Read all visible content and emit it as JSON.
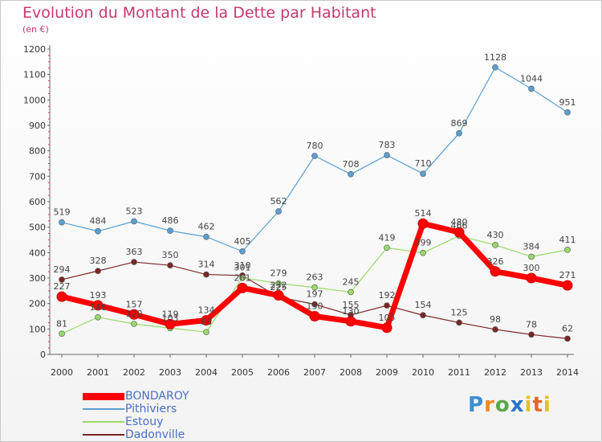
{
  "title": "Evolution du Montant de la Dette par Habitant",
  "subtitle": "(en €)",
  "logo_text": "Proxiti",
  "chart_data": {
    "type": "line",
    "title": "Evolution du Montant de la Dette par Habitant",
    "subtitle": "(en €)",
    "x": [
      "2000",
      "2001",
      "2002",
      "2003",
      "2004",
      "2005",
      "2006",
      "2007",
      "2008",
      "2009",
      "2010",
      "2011",
      "2012",
      "2013",
      "2014"
    ],
    "ylim": [
      0,
      1200
    ],
    "yticks": [
      0,
      100,
      200,
      300,
      400,
      500,
      600,
      700,
      800,
      900,
      1000,
      1100,
      1200
    ],
    "grid": false,
    "legend_position": "bottom-left",
    "series": [
      {
        "name": "BONDAROY",
        "color": "#ff0000",
        "values": [
          227,
          193,
          157,
          119,
          134,
          261,
          232,
          150,
          130,
          105,
          514,
          480,
          326,
          300,
          271
        ],
        "labels": [
          "227",
          "193",
          "157",
          "119",
          "134",
          "261",
          "232",
          "150",
          "130",
          "105",
          "514",
          "480",
          "326",
          "300",
          "271"
        ]
      },
      {
        "name": "Pithiviers",
        "color": "#5a9fd4",
        "values": [
          519,
          484,
          523,
          486,
          462,
          405,
          562,
          780,
          708,
          783,
          710,
          869,
          1128,
          1044,
          951
        ],
        "labels": [
          "519",
          "484",
          "523",
          "486",
          "462",
          "405",
          "562",
          "780",
          "708",
          "783",
          "710",
          "869",
          "1128",
          "1044",
          "951"
        ]
      },
      {
        "name": "Estouy",
        "color": "#99d96a",
        "values": [
          81,
          146,
          120,
          103,
          88,
          301,
          279,
          263,
          245,
          419,
          399,
          466,
          430,
          384,
          411
        ],
        "labels": [
          "81",
          "146",
          "120",
          "103",
          "88",
          "301",
          "279",
          "263",
          "245",
          "419",
          "399",
          "466",
          "430",
          "384",
          "411"
        ]
      },
      {
        "name": "Dadonville",
        "color": "#7a2626",
        "values": [
          294,
          328,
          363,
          350,
          314,
          310,
          225,
          197,
          155,
          192,
          154,
          125,
          98,
          78,
          62
        ],
        "labels": [
          "294",
          "328",
          "363",
          "350",
          "314",
          "310",
          "225",
          "197",
          "155",
          "192",
          "154",
          "125",
          "98",
          "78",
          "62"
        ]
      }
    ]
  }
}
